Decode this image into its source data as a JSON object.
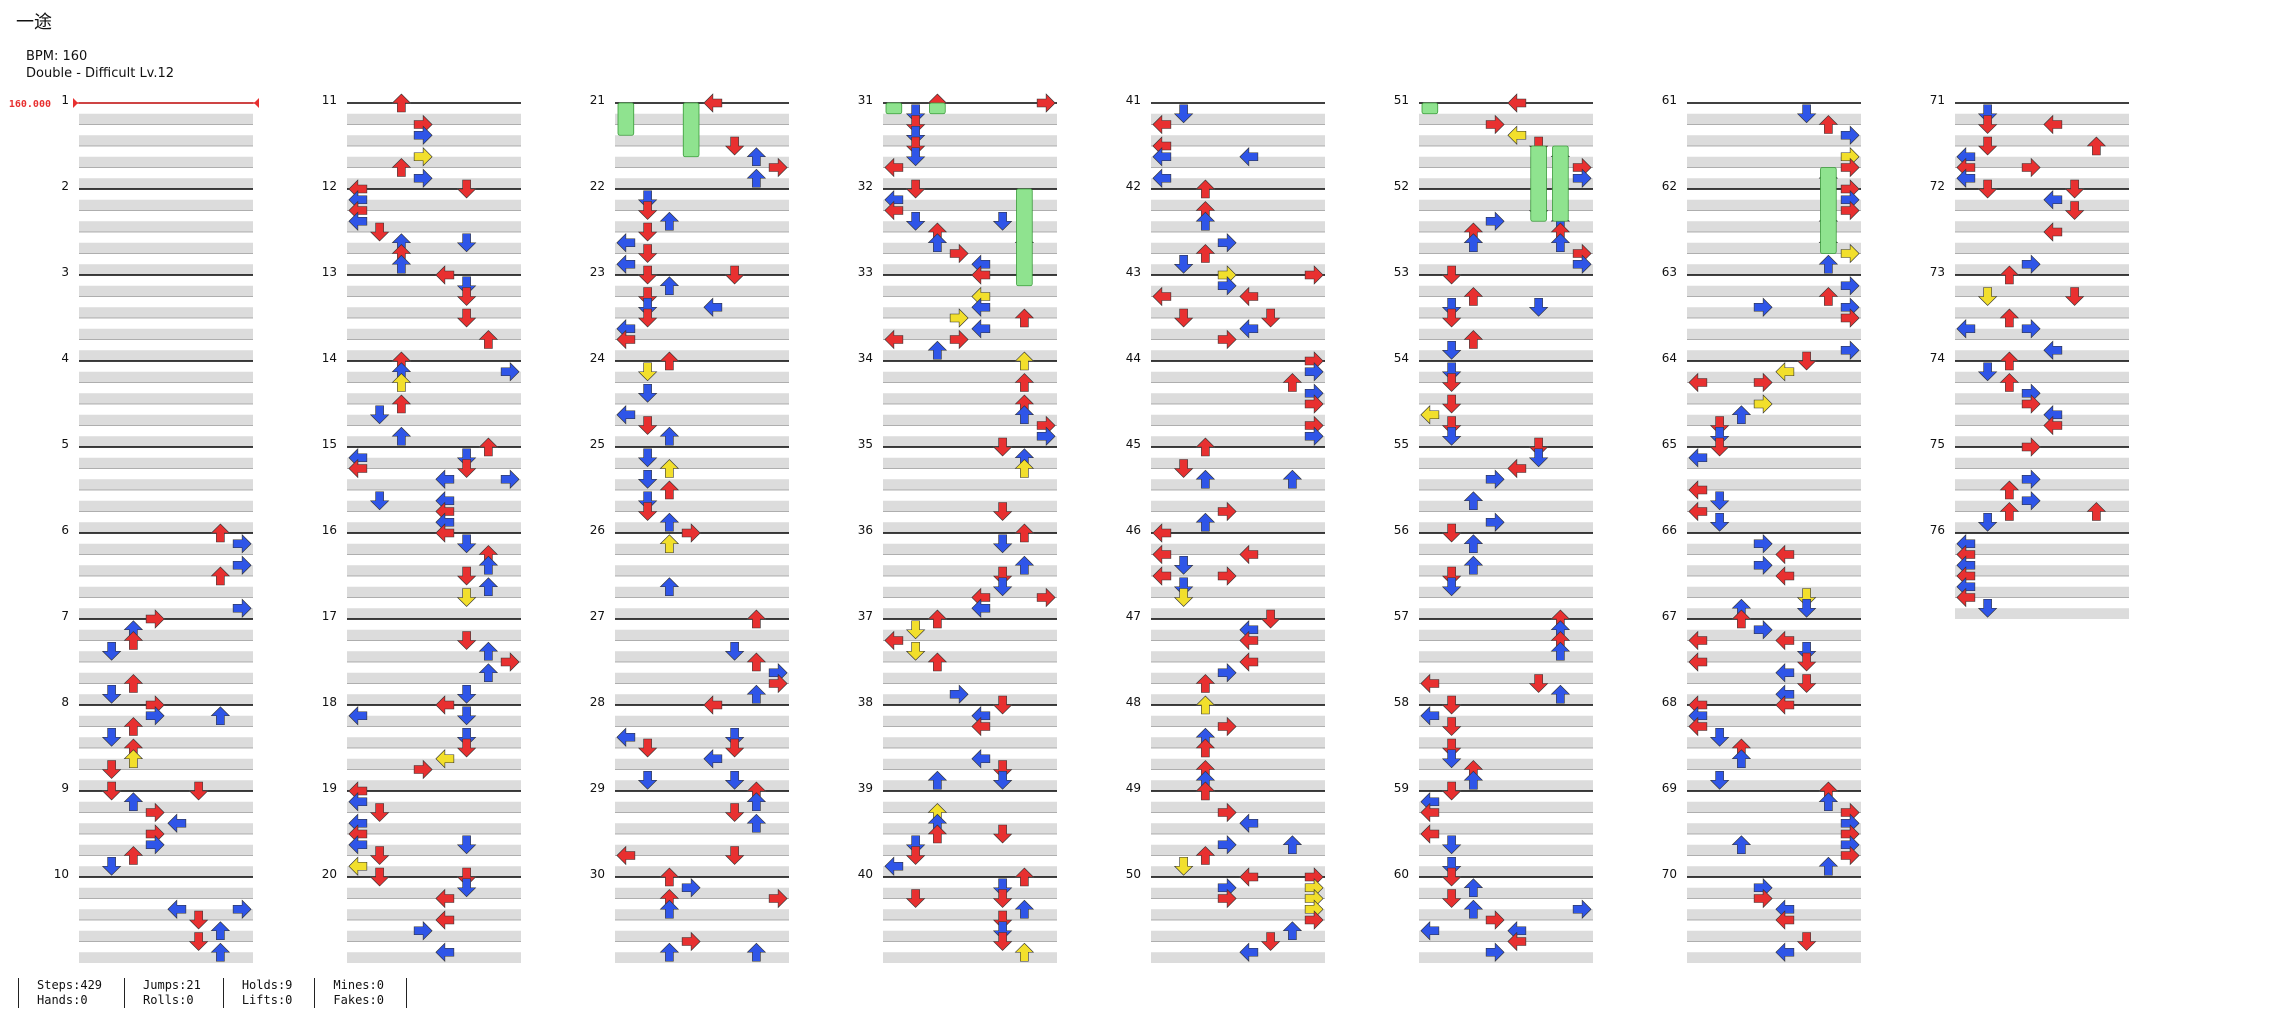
{
  "song": {
    "title": "一途",
    "bpm_text": "BPM: 160",
    "difficulty_text": "Double - Difficult Lv.12"
  },
  "bpm_marker": {
    "label": "160.000"
  },
  "colors": {
    "quarter": "#e83030",
    "eighth": "#2f55e8",
    "sixteenth": "#f2df2c",
    "hold": "#8fe38f",
    "beat_line": "#000000",
    "stripe": "#dcdcdc",
    "bpm": "#e83030"
  },
  "chart": {
    "measures": 76,
    "measures_per_column": 10,
    "columns": 8,
    "panels": [
      "left",
      "down",
      "up",
      "right",
      "left",
      "down",
      "up",
      "right"
    ]
  },
  "stats": [
    {
      "line1": "Steps:429",
      "line2": "Hands:0"
    },
    {
      "line1": "Jumps:21",
      "line2": "Rolls:0"
    },
    {
      "line1": "Holds:9",
      "line2": "Lifts:0"
    },
    {
      "line1": "Mines:0",
      "line2": "Fakes:0"
    }
  ]
}
